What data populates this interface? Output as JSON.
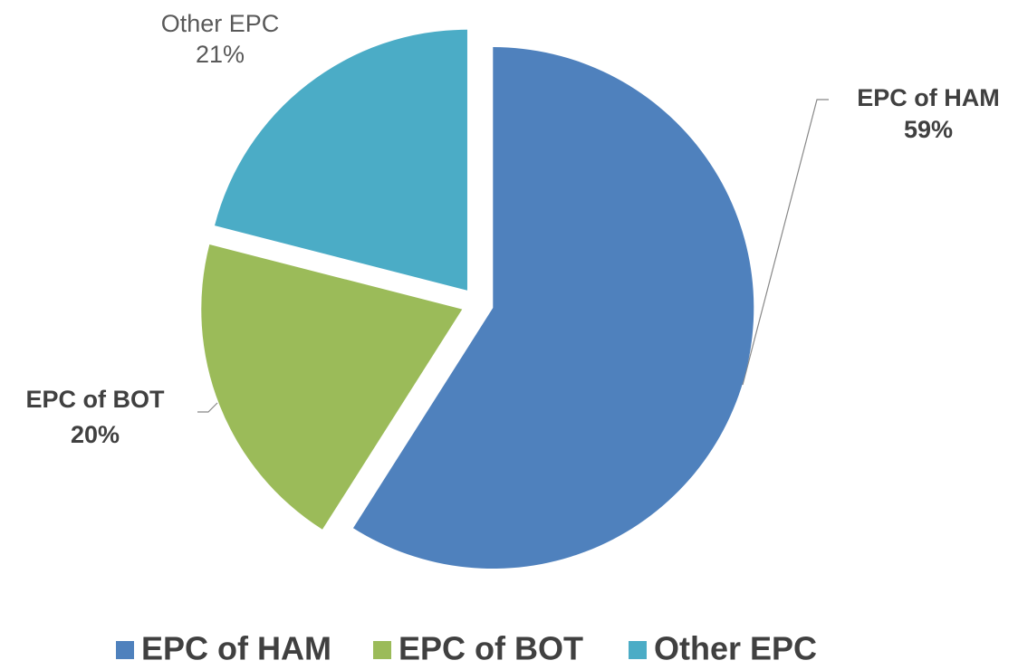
{
  "chart_data": {
    "type": "pie",
    "categories": [
      "EPC of HAM",
      "EPC of BOT",
      "Other EPC"
    ],
    "values": [
      59,
      20,
      21
    ],
    "value_labels": [
      "59%",
      "20%",
      "21%"
    ],
    "colors": [
      "#4f81bd",
      "#9bbb59",
      "#4bacc6"
    ],
    "legend": "bottom"
  }
}
